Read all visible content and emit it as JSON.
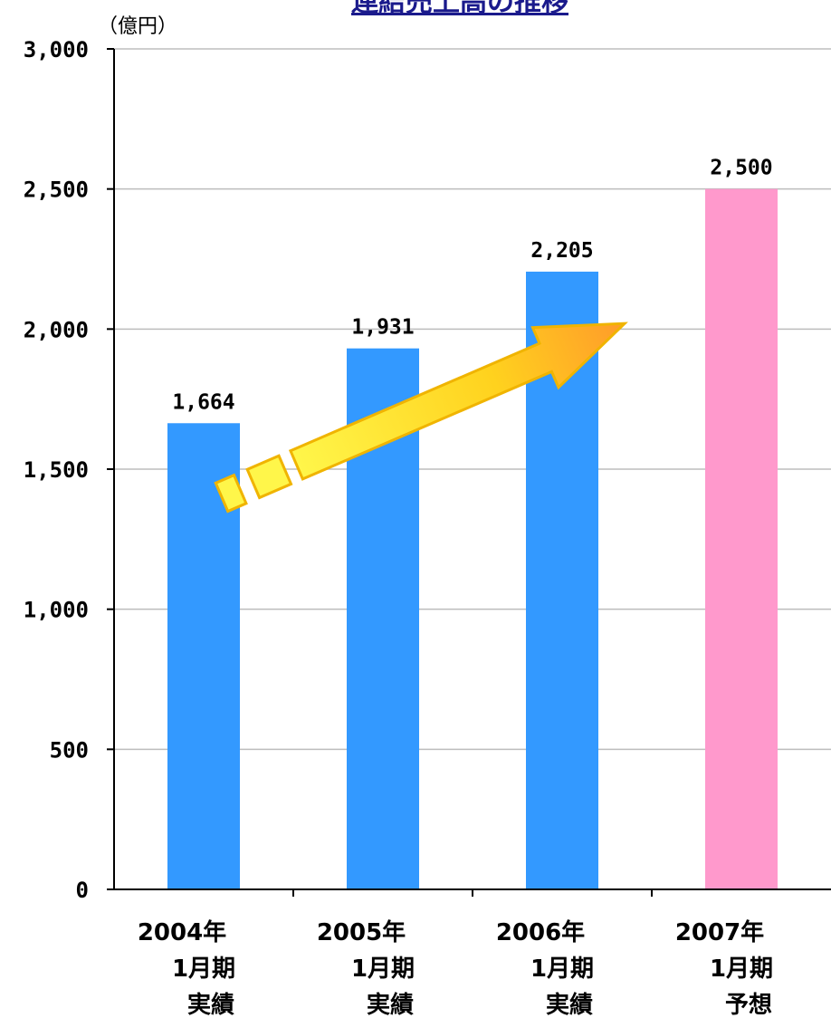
{
  "chart_data": {
    "type": "bar",
    "title": "連結売上高の推移",
    "unit_label": "（億円）",
    "categories": [
      [
        "2004年",
        "1月期",
        "実績"
      ],
      [
        "2005年",
        "1月期",
        "実績"
      ],
      [
        "2006年",
        "1月期",
        "実績"
      ],
      [
        "2007年",
        "1月期",
        "予想"
      ]
    ],
    "values": [
      1664,
      1931,
      2205,
      2500
    ],
    "value_labels": [
      "1,664",
      "1,931",
      "2,205",
      "2,500"
    ],
    "bar_colors": [
      "#3399ff",
      "#3399ff",
      "#3399ff",
      "#ff99cc"
    ],
    "ylim": [
      0,
      3000
    ],
    "yticks": [
      0,
      500,
      1000,
      1500,
      2000,
      2500,
      3000
    ],
    "ytick_labels": [
      "0",
      "500",
      "1,000",
      "1,500",
      "2,000",
      "2,500",
      "3,000"
    ],
    "grid": true,
    "legend": "none",
    "annotations": [
      {
        "type": "arrow",
        "direction": "up-right",
        "from": [
          0.5,
          1400
        ],
        "to": [
          3,
          2020
        ]
      }
    ]
  }
}
